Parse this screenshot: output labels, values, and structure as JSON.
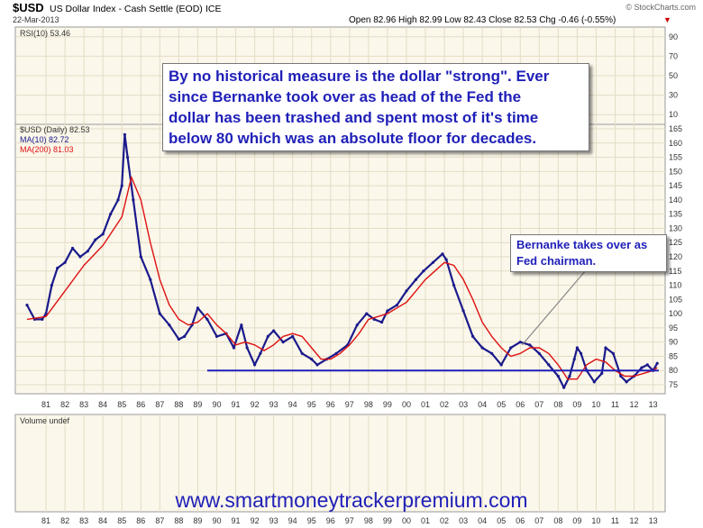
{
  "header": {
    "symbol": "$USD",
    "name": "US Dollar Index - Cash Settle (EOD)",
    "exchange": "ICE",
    "date": "22-Mar-2013",
    "watermark": "© StockCharts.com",
    "ohlc": "Open 82.96  High 82.99  Low 82.43  Close 82.53  Chg -0.46 (-0.55%)",
    "change_arrow": "▼"
  },
  "rsi_panel": {
    "label": "RSI(10) 53.46",
    "ticks": [
      "90",
      "70",
      "50",
      "30",
      "10"
    ]
  },
  "price_panel": {
    "legend_main": "$USD (Daily) 82.53",
    "legend_ma10": "MA(10) 82.72",
    "legend_ma200": "MA(200) 81.03"
  },
  "volume_panel": {
    "label": "Volume undef"
  },
  "annotations": {
    "main_lines": [
      "By no historical measure is the dollar \"strong\". Ever",
      "since Bernanke took over as head of the Fed the",
      "dollar has been trashed and spent most of it's time",
      "below 80 which was an absolute floor for decades."
    ],
    "bernanke_lines": [
      "Bernanke takes over as",
      "Fed chairman."
    ],
    "website": "www.smartmoneytrackerpremium.com"
  },
  "colors": {
    "price": "#1a1a8c",
    "ma10": "#1a1a8c",
    "ma200": "#dd1111",
    "floor_line": "#1f1fb8",
    "panel_bg": "#fbf7ea",
    "grid": "#e3dcc6"
  },
  "chart_data": {
    "type": "line",
    "title": "$USD US Dollar Index - Cash Settle (EOD)",
    "x_tick_labels": [
      "81",
      "82",
      "83",
      "84",
      "85",
      "86",
      "87",
      "88",
      "89",
      "90",
      "91",
      "92",
      "93",
      "94",
      "95",
      "96",
      "97",
      "98",
      "99",
      "00",
      "01",
      "02",
      "03",
      "04",
      "05",
      "06",
      "07",
      "08",
      "09",
      "10",
      "11",
      "12",
      "13"
    ],
    "y_tick_labels": [
      "165",
      "160",
      "155",
      "150",
      "145",
      "140",
      "135",
      "130",
      "125",
      "120",
      "115",
      "110",
      "105",
      "100",
      "95",
      "90",
      "85",
      "80",
      "75"
    ],
    "ylim": [
      70,
      167
    ],
    "xlim": [
      1980.0,
      2013.4
    ],
    "horizontal_line": {
      "y": 80,
      "x_from": 1989.5,
      "x_to": 2013.3
    },
    "bernanke_marker": {
      "x": 2006.1,
      "y": 89
    },
    "series": [
      {
        "name": "$USD (Daily)",
        "x": [
          1980.0,
          1980.4,
          1980.8,
          1981.0,
          1981.3,
          1981.6,
          1982.0,
          1982.4,
          1982.8,
          1983.2,
          1983.6,
          1984.0,
          1984.4,
          1984.8,
          1985.0,
          1985.15,
          1985.3,
          1985.6,
          1986.0,
          1986.5,
          1987.0,
          1987.5,
          1988.0,
          1988.3,
          1988.7,
          1989.0,
          1989.5,
          1990.0,
          1990.5,
          1990.9,
          1991.3,
          1991.6,
          1992.0,
          1992.3,
          1992.7,
          1993.0,
          1993.5,
          1994.0,
          1994.5,
          1995.0,
          1995.3,
          1995.8,
          1996.3,
          1996.9,
          1997.4,
          1997.9,
          1998.3,
          1998.7,
          1999.0,
          1999.5,
          2000.0,
          2000.5,
          2000.9,
          2001.4,
          2001.9,
          2002.1,
          2002.5,
          2003.0,
          2003.5,
          2004.0,
          2004.5,
          2005.0,
          2005.5,
          2006.0,
          2006.5,
          2007.0,
          2007.5,
          2008.0,
          2008.3,
          2008.6,
          2008.85,
          2009.0,
          2009.2,
          2009.5,
          2009.9,
          2010.3,
          2010.5,
          2010.9,
          2011.3,
          2011.6,
          2012.0,
          2012.4,
          2012.7,
          2013.0,
          2013.22
        ],
        "y": [
          103,
          98,
          98,
          100,
          110,
          116,
          118,
          123,
          120,
          122,
          126,
          128,
          135,
          140,
          145,
          163,
          155,
          140,
          120,
          112,
          100,
          96,
          91,
          92,
          96,
          102,
          98,
          92,
          93,
          88,
          96,
          88,
          82,
          86,
          92,
          94,
          90,
          92,
          86,
          84,
          82,
          84,
          86,
          89,
          96,
          100,
          98,
          97,
          101,
          103,
          108,
          112,
          115,
          118,
          121,
          119,
          110,
          101,
          92,
          88,
          86,
          82,
          88,
          90,
          89,
          86,
          82,
          78,
          74,
          78,
          84,
          88,
          86,
          80,
          76,
          79,
          88,
          86,
          78,
          76,
          78,
          81,
          82,
          80,
          82.53
        ]
      },
      {
        "name": "MA(200)",
        "x": [
          1980.0,
          1981.0,
          1982.0,
          1983.0,
          1984.0,
          1985.0,
          1985.5,
          1986.0,
          1986.5,
          1987.0,
          1987.5,
          1988.0,
          1988.5,
          1989.0,
          1989.5,
          1990.0,
          1990.5,
          1991.0,
          1991.5,
          1992.0,
          1992.5,
          1993.0,
          1993.5,
          1994.0,
          1994.5,
          1995.0,
          1995.5,
          1996.0,
          1996.5,
          1997.0,
          1997.5,
          1998.0,
          1998.5,
          1999.0,
          1999.5,
          2000.0,
          2000.5,
          2001.0,
          2001.5,
          2002.0,
          2002.5,
          2003.0,
          2003.5,
          2004.0,
          2004.5,
          2005.0,
          2005.5,
          2006.0,
          2006.5,
          2007.0,
          2007.5,
          2008.0,
          2008.5,
          2009.0,
          2009.5,
          2010.0,
          2010.5,
          2011.0,
          2011.5,
          2012.0,
          2012.5,
          2013.0,
          2013.22
        ],
        "y": [
          98,
          99,
          108,
          117,
          124,
          134,
          148,
          140,
          125,
          112,
          103,
          98,
          96,
          97,
          100,
          96,
          93,
          89,
          90,
          89,
          87,
          89,
          92,
          93,
          92,
          88,
          84,
          84,
          86,
          89,
          93,
          98,
          99,
          100,
          102,
          104,
          108,
          112,
          115,
          118,
          117,
          112,
          105,
          97,
          92,
          88,
          85,
          86,
          88,
          88,
          86,
          82,
          77,
          77,
          82,
          84,
          83,
          80,
          78,
          78,
          79,
          80,
          81.03
        ]
      }
    ]
  }
}
